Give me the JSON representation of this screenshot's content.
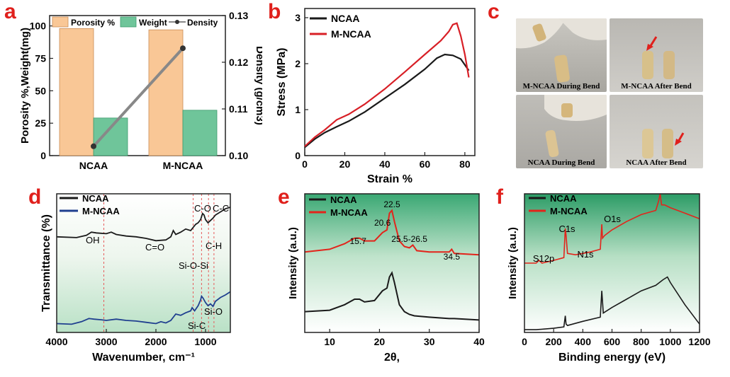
{
  "panel_labels": {
    "a": "a",
    "b": "b",
    "c": "c",
    "d": "d",
    "e": "e",
    "f": "f"
  },
  "colors": {
    "panel_label": "#e0201c",
    "porosity": "#f9c796",
    "weight": "#6fc59a",
    "density_line": "#888888",
    "ncaa": "#1a1a1a",
    "mncaa_b": "#d81f26",
    "mncaa_d": "#1f3f8f",
    "mncaa_e": "#e3241b",
    "guide": "#e65a5a",
    "bg_green": "#2e9f69"
  },
  "chart_data": [
    {
      "id": "a",
      "type": "bar",
      "categories": [
        "NCAA",
        "M-NCAA"
      ],
      "series": [
        {
          "name": "Porosity %",
          "axis": "left",
          "values": [
            98,
            97
          ]
        },
        {
          "name": "Weight",
          "axis": "left",
          "values": [
            29,
            35
          ]
        },
        {
          "name": "Density",
          "axis": "right",
          "type": "line",
          "values": [
            0.102,
            0.123
          ]
        }
      ],
      "ylabel": "Porosity %,Weight(mg)",
      "ylabel2": "Density (g/cm3)",
      "ylim": [
        0,
        108
      ],
      "yticks": [
        "0",
        "25",
        "50",
        "75",
        "100"
      ],
      "ylim2": [
        0.1,
        0.13
      ],
      "yticks2": [
        "0.10",
        "0.11",
        "0.12",
        "0.13"
      ]
    },
    {
      "id": "b",
      "type": "line",
      "xlabel": "Strain %",
      "ylabel": "Stress (MPa)",
      "xlim": [
        0,
        85
      ],
      "ylim": [
        0,
        3.2
      ],
      "xticks": [
        "0",
        "20",
        "40",
        "60",
        "80"
      ],
      "yticks": [
        "0",
        "1",
        "2",
        "3"
      ],
      "series": [
        {
          "name": "NCAA",
          "x": [
            0,
            5,
            10,
            16,
            22,
            30,
            40,
            50,
            60,
            66,
            70,
            74,
            78,
            82
          ],
          "y": [
            0.18,
            0.36,
            0.5,
            0.63,
            0.75,
            0.95,
            1.25,
            1.55,
            1.88,
            2.12,
            2.2,
            2.18,
            2.1,
            1.85
          ]
        },
        {
          "name": "M-NCAA",
          "x": [
            0,
            5,
            10,
            16,
            22,
            30,
            40,
            50,
            60,
            68,
            72,
            74,
            76,
            78,
            80,
            82
          ],
          "y": [
            0.2,
            0.4,
            0.56,
            0.78,
            0.9,
            1.12,
            1.45,
            1.82,
            2.2,
            2.5,
            2.7,
            2.85,
            2.88,
            2.6,
            2.2,
            1.7
          ]
        }
      ]
    },
    {
      "id": "d",
      "type": "line",
      "xlabel": "Wavenumber, cm⁻¹",
      "ylabel": "Transmittance (%)",
      "xlim": [
        4000,
        500
      ],
      "xticks": [
        "4000",
        "3000",
        "2000",
        "1000"
      ],
      "legend": [
        "NCAA",
        "M-NCAA"
      ],
      "guide_lines": [
        3050,
        1250,
        1080,
        940,
        830
      ],
      "annotations": [
        "OH",
        "C=O",
        "C-O",
        "C-C",
        "C-H",
        "Si-O-Si",
        "Si-O",
        "Si-C"
      ],
      "series": [
        {
          "name": "NCAA",
          "x": [
            4000,
            3600,
            3400,
            3300,
            3200,
            3000,
            2900,
            2800,
            2600,
            2400,
            2200,
            2000,
            1800,
            1700,
            1650,
            1600,
            1500,
            1400,
            1300,
            1200,
            1150,
            1100,
            1060,
            1030,
            1000,
            950,
            900,
            850,
            800,
            700,
            600,
            500
          ],
          "y": [
            0.52,
            0.51,
            0.54,
            0.58,
            0.57,
            0.56,
            0.58,
            0.55,
            0.53,
            0.52,
            0.5,
            0.47,
            0.48,
            0.52,
            0.6,
            0.55,
            0.58,
            0.62,
            0.6,
            0.68,
            0.7,
            0.74,
            0.82,
            0.8,
            0.74,
            0.7,
            0.73,
            0.76,
            0.8,
            0.84,
            0.88,
            0.9
          ]
        },
        {
          "name": "M-NCAA",
          "x": [
            4000,
            3700,
            3500,
            3350,
            3250,
            3100,
            3000,
            2800,
            2600,
            2400,
            2200,
            2000,
            1900,
            1800,
            1700,
            1600,
            1500,
            1400,
            1300,
            1270,
            1220,
            1150,
            1100,
            1080,
            1050,
            1000,
            950,
            900,
            850,
            800,
            700,
            600,
            500
          ],
          "y": [
            0.05,
            0.04,
            0.08,
            0.13,
            0.12,
            0.11,
            0.1,
            0.12,
            0.1,
            0.09,
            0.07,
            0.05,
            0.08,
            0.06,
            0.1,
            0.2,
            0.18,
            0.22,
            0.25,
            0.3,
            0.25,
            0.33,
            0.42,
            0.48,
            0.45,
            0.38,
            0.33,
            0.36,
            0.32,
            0.4,
            0.46,
            0.5,
            0.55
          ]
        }
      ]
    },
    {
      "id": "e",
      "type": "line",
      "xlabel": "2θ,",
      "ylabel": "Intensity (a.u.)",
      "xlim": [
        5,
        40
      ],
      "xticks": [
        "10",
        "20",
        "30",
        "40"
      ],
      "legend": [
        "NCAA",
        "M-NCAA"
      ],
      "peak_labels": [
        {
          "x": 15.7,
          "label": "15.7"
        },
        {
          "x": 20.6,
          "label": "20.6"
        },
        {
          "x": 22.5,
          "label": "22.5"
        },
        {
          "x": 26.0,
          "label": "25.5-26.5"
        },
        {
          "x": 34.5,
          "label": "34.5"
        }
      ],
      "series": [
        {
          "name": "M-NCAA",
          "x": [
            5,
            10,
            13,
            15,
            16,
            17,
            19,
            20.6,
            21.5,
            22,
            22.5,
            23,
            24,
            25,
            26,
            26.7,
            27.5,
            30,
            34,
            34.5,
            35,
            40
          ],
          "y": [
            0.58,
            0.6,
            0.64,
            0.68,
            0.68,
            0.66,
            0.66,
            0.72,
            0.74,
            0.86,
            0.88,
            0.8,
            0.66,
            0.62,
            0.61,
            0.63,
            0.59,
            0.58,
            0.58,
            0.6,
            0.57,
            0.56
          ]
        },
        {
          "name": "NCAA",
          "x": [
            5,
            10,
            13,
            15,
            16,
            17,
            19,
            20.6,
            21.5,
            22,
            22.5,
            23,
            24,
            25,
            26,
            27,
            30,
            34,
            35,
            40
          ],
          "y": [
            0.15,
            0.16,
            0.2,
            0.24,
            0.24,
            0.22,
            0.23,
            0.3,
            0.32,
            0.4,
            0.43,
            0.36,
            0.2,
            0.15,
            0.13,
            0.12,
            0.11,
            0.1,
            0.1,
            0.09
          ]
        }
      ]
    },
    {
      "id": "f",
      "type": "line",
      "xlabel": "Binding energy (eV)",
      "ylabel": "Intensity (a.u.)",
      "xlim": [
        0,
        1200
      ],
      "xticks": [
        "0",
        "200",
        "400",
        "600",
        "800",
        "1000",
        "1200"
      ],
      "legend": [
        "NCAA",
        "M-NCAA"
      ],
      "peak_labels": [
        {
          "x": 100,
          "label": "S12p"
        },
        {
          "x": 285,
          "label": "C1s"
        },
        {
          "x": 400,
          "label": "N1s"
        },
        {
          "x": 532,
          "label": "O1s"
        }
      ],
      "series": [
        {
          "name": "M-NCAA",
          "x": [
            0,
            80,
            100,
            120,
            200,
            270,
            280,
            285,
            295,
            350,
            400,
            450,
            520,
            530,
            535,
            550,
            600,
            700,
            800,
            900,
            920,
            930,
            940,
            960,
            1000,
            1100,
            1200
          ],
          "y": [
            0.5,
            0.5,
            0.52,
            0.5,
            0.52,
            0.54,
            0.75,
            0.7,
            0.57,
            0.56,
            0.57,
            0.58,
            0.6,
            0.78,
            0.68,
            0.7,
            0.74,
            0.8,
            0.85,
            0.88,
            0.95,
            1.0,
            0.92,
            0.92,
            0.9,
            0.86,
            0.82
          ]
        },
        {
          "name": "NCAA",
          "x": [
            0,
            80,
            200,
            270,
            280,
            285,
            295,
            400,
            520,
            530,
            540,
            600,
            700,
            800,
            900,
            950,
            980,
            1000,
            1100,
            1200
          ],
          "y": [
            0.02,
            0.02,
            0.03,
            0.04,
            0.12,
            0.06,
            0.05,
            0.08,
            0.11,
            0.3,
            0.14,
            0.18,
            0.24,
            0.3,
            0.34,
            0.38,
            0.4,
            0.36,
            0.2,
            0.06
          ]
        }
      ]
    }
  ],
  "photos": [
    {
      "caption": "M-NCAA During Bend"
    },
    {
      "caption": "M-NCAA  After Bend"
    },
    {
      "caption": "NCAA During Bend"
    },
    {
      "caption": "NCAA  After Bend"
    }
  ]
}
